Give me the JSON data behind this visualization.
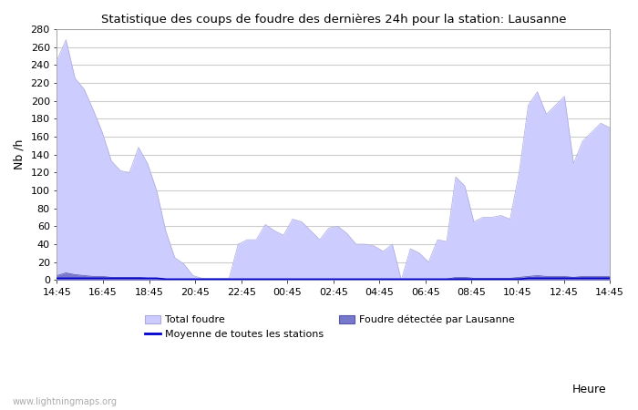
{
  "title": "Statistique des coups de foudre des dernières 24h pour la station: Lausanne",
  "xlabel": "Heure",
  "ylabel": "Nb /h",
  "ylim": [
    0,
    280
  ],
  "yticks": [
    0,
    20,
    40,
    60,
    80,
    100,
    120,
    140,
    160,
    180,
    200,
    220,
    240,
    260,
    280
  ],
  "x_labels": [
    "14:45",
    "16:45",
    "18:45",
    "20:45",
    "22:45",
    "00:45",
    "02:45",
    "04:45",
    "06:45",
    "08:45",
    "10:45",
    "12:45",
    "14:45"
  ],
  "watermark": "www.lightningmaps.org",
  "background_color": "#ffffff",
  "grid_color": "#cccccc",
  "total_foudre_color": "#ccccff",
  "total_foudre_edge_color": "#aaaadd",
  "lausanne_color": "#7777cc",
  "lausanne_edge_color": "#5555aa",
  "moyenne_color": "#0000cc",
  "total_foudre_data": [
    245,
    268,
    225,
    213,
    190,
    165,
    133,
    122,
    120,
    148,
    130,
    100,
    55,
    25,
    18,
    5,
    2,
    2,
    2,
    2,
    40,
    45,
    45,
    62,
    55,
    50,
    68,
    65,
    55,
    45,
    58,
    60,
    52,
    40,
    40,
    38,
    32,
    40,
    0,
    35,
    30,
    20,
    45,
    43,
    115,
    105,
    65,
    70,
    70,
    72,
    68,
    120,
    195,
    210,
    185,
    195,
    205,
    130,
    155,
    165,
    175,
    170
  ],
  "lausanne_data": [
    5,
    8,
    6,
    5,
    4,
    4,
    3,
    3,
    3,
    3,
    2,
    2,
    1,
    1,
    1,
    1,
    1,
    1,
    1,
    1,
    1,
    1,
    1,
    1,
    1,
    1,
    1,
    1,
    1,
    1,
    1,
    1,
    1,
    1,
    1,
    1,
    1,
    1,
    1,
    1,
    1,
    1,
    1,
    1,
    3,
    3,
    2,
    2,
    2,
    2,
    2,
    3,
    4,
    5,
    4,
    4,
    4,
    3,
    4,
    4,
    4,
    4
  ],
  "moyenne_data": [
    2,
    2,
    2,
    2,
    2,
    2,
    2,
    2,
    2,
    2,
    2,
    2,
    1,
    1,
    1,
    1,
    1,
    1,
    1,
    1,
    1,
    1,
    1,
    1,
    1,
    1,
    1,
    1,
    1,
    1,
    1,
    1,
    1,
    1,
    1,
    1,
    1,
    1,
    1,
    1,
    1,
    1,
    1,
    1,
    1,
    1,
    1,
    1,
    1,
    1,
    1,
    1,
    2,
    2,
    2,
    2,
    2,
    2,
    2,
    2,
    2,
    2
  ]
}
